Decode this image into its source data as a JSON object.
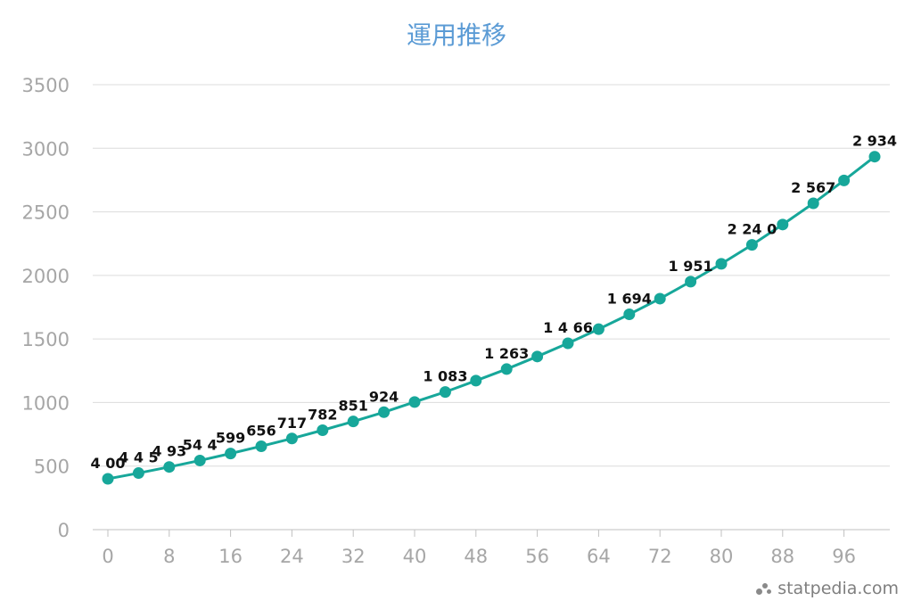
{
  "chart_data": {
    "type": "line",
    "title": "運用推移",
    "xlabel": "",
    "ylabel": "",
    "x": [
      0,
      4,
      8,
      12,
      16,
      20,
      24,
      28,
      32,
      36,
      40,
      44,
      48,
      52,
      56,
      60,
      64,
      68,
      72,
      76,
      80,
      84,
      88,
      92,
      96,
      100
    ],
    "series": [
      {
        "values": [
          400,
          445,
          493,
          544,
          599,
          656,
          717,
          782,
          851,
          924,
          1004,
          1083,
          1172,
          1263,
          1362,
          1466,
          1577,
          1694,
          1817,
          1951,
          2091,
          2240,
          2400,
          2567,
          2747,
          2934
        ]
      }
    ],
    "data_labels": [
      {
        "x": 0,
        "text": "4 00"
      },
      {
        "x": 4,
        "text": "4 4 5"
      },
      {
        "x": 8,
        "text": "4 93"
      },
      {
        "x": 12,
        "text": "54 4"
      },
      {
        "x": 16,
        "text": "599"
      },
      {
        "x": 20,
        "text": "656"
      },
      {
        "x": 24,
        "text": "717"
      },
      {
        "x": 28,
        "text": "782"
      },
      {
        "x": 32,
        "text": "851"
      },
      {
        "x": 36,
        "text": "924"
      },
      {
        "x": 44,
        "text": "1 083"
      },
      {
        "x": 52,
        "text": "1 263"
      },
      {
        "x": 60,
        "text": "1 4 66"
      },
      {
        "x": 68,
        "text": "1 694"
      },
      {
        "x": 76,
        "text": "1 951"
      },
      {
        "x": 84,
        "text": "2 24 0"
      },
      {
        "x": 92,
        "text": "2 567"
      },
      {
        "x": 100,
        "text": "2 934"
      }
    ],
    "xticks": [
      "0",
      "8",
      "16",
      "24",
      "32",
      "40",
      "48",
      "56",
      "64",
      "72",
      "80",
      "88",
      "96"
    ],
    "yticks": [
      "0",
      "500",
      "1000",
      "1500",
      "2000",
      "2500",
      "3000",
      "3500"
    ],
    "xlim": [
      0,
      102
    ],
    "ylim": [
      0,
      3500
    ],
    "grid": true,
    "line_color": "#17a79a",
    "title_color": "#5b9bd5"
  },
  "watermark": "statpedia.com"
}
